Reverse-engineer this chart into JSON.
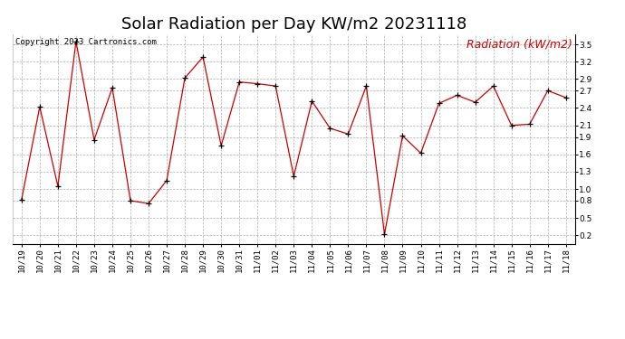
{
  "title": "Solar Radiation per Day KW/m2 20231118",
  "copyright_text": "Copyright 2023 Cartronics.com",
  "legend_label": "Radiation (kW/m2)",
  "dates": [
    "10/19",
    "10/20",
    "10/21",
    "10/22",
    "10/23",
    "10/24",
    "10/25",
    "10/26",
    "10/27",
    "10/28",
    "10/29",
    "10/30",
    "10/31",
    "11/01",
    "11/02",
    "11/03",
    "11/04",
    "11/05",
    "11/06",
    "11/07",
    "11/08",
    "11/09",
    "11/10",
    "11/11",
    "11/12",
    "11/13",
    "11/14",
    "11/15",
    "11/16",
    "11/17",
    "11/18"
  ],
  "values": [
    0.82,
    2.42,
    1.05,
    3.55,
    1.85,
    2.75,
    0.8,
    0.75,
    1.15,
    2.92,
    3.28,
    1.75,
    2.85,
    2.82,
    2.78,
    1.22,
    2.52,
    2.05,
    1.95,
    2.78,
    0.22,
    1.92,
    1.62,
    2.48,
    2.62,
    2.5,
    2.78,
    2.1,
    2.12,
    2.7,
    2.58
  ],
  "line_color": "#cc0000",
  "marker_color": "#000000",
  "background_color": "#ffffff",
  "grid_color": "#999999",
  "title_color": "#000000",
  "copyright_color": "#000000",
  "legend_color": "#cc0000",
  "yticks": [
    0.2,
    0.5,
    0.8,
    1.0,
    1.3,
    1.6,
    1.9,
    2.1,
    2.4,
    2.7,
    2.9,
    3.2,
    3.5
  ],
  "ylim": [
    0.05,
    3.68
  ],
  "title_fontsize": 13,
  "copyright_fontsize": 6.5,
  "legend_fontsize": 9,
  "tick_fontsize": 6.5,
  "fig_width": 6.9,
  "fig_height": 3.75,
  "fig_dpi": 100
}
